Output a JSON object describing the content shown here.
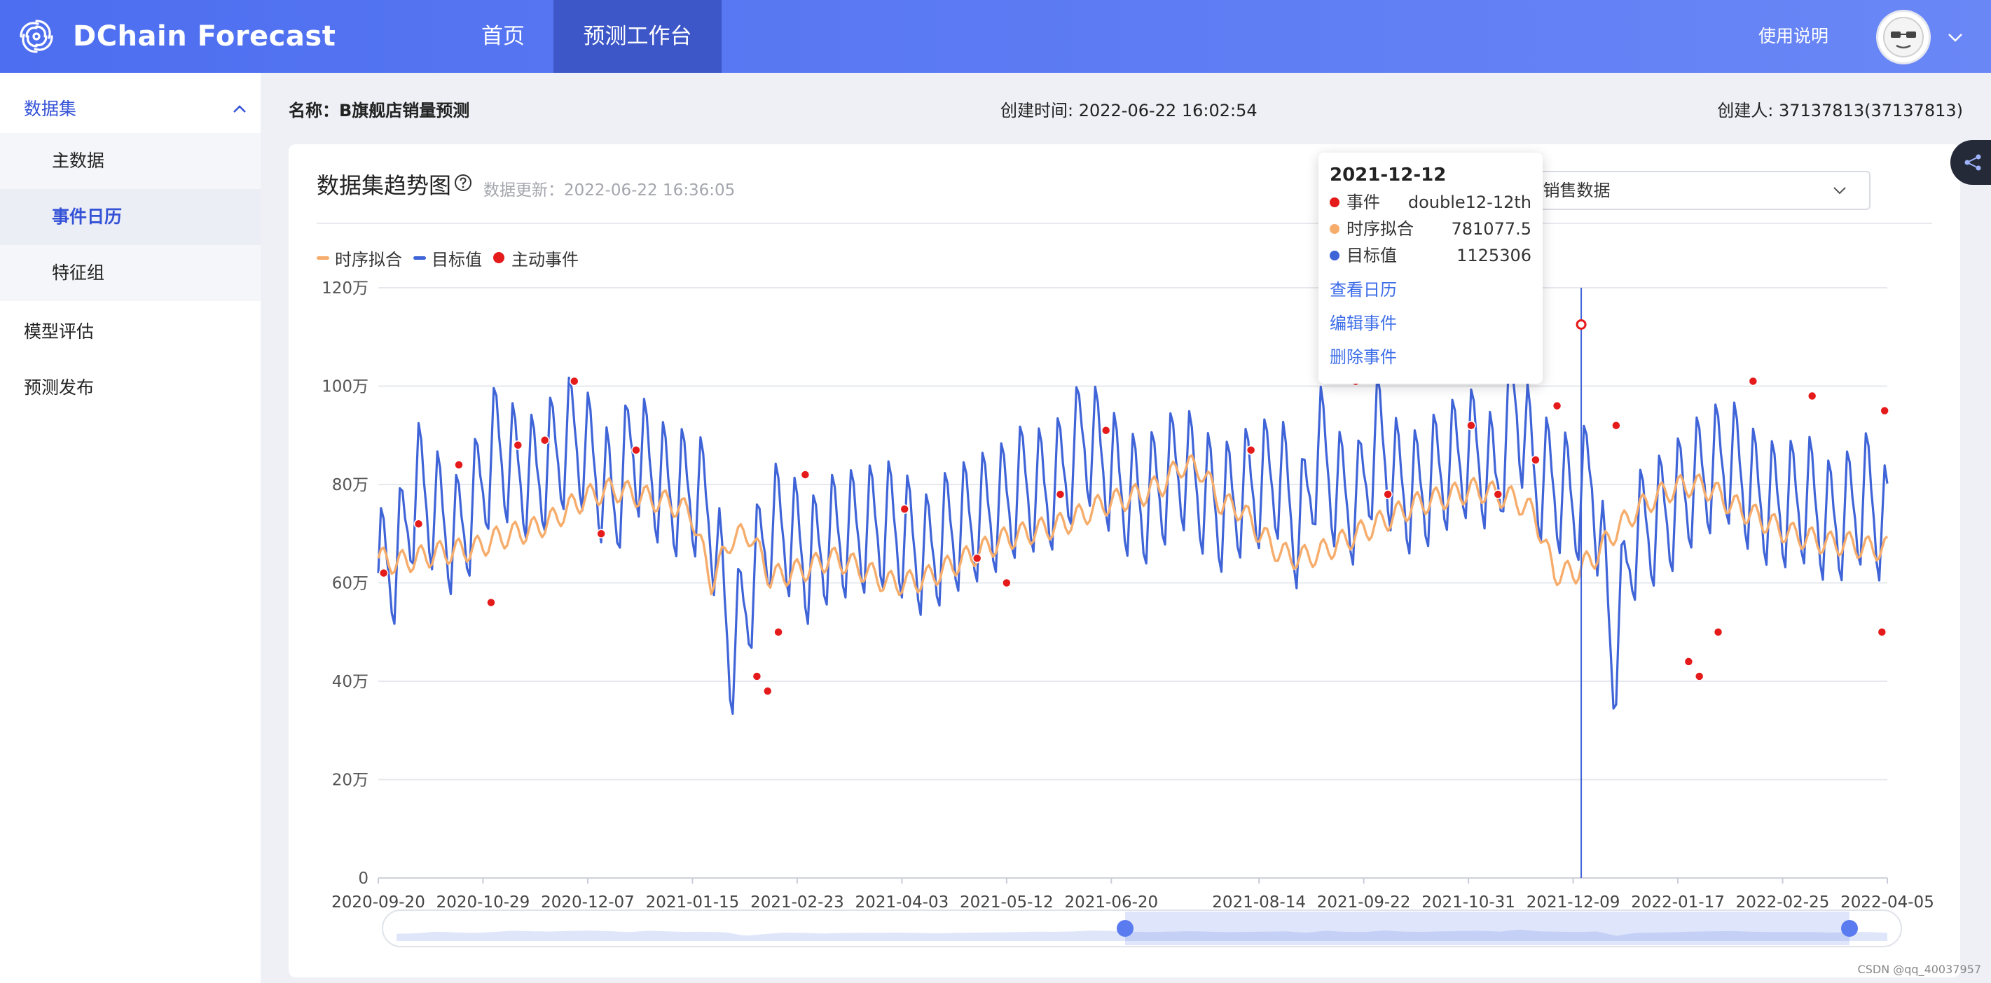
{
  "app": {
    "brand": "DChain Forecast",
    "help": "使用说明"
  },
  "nav": [
    {
      "label": "首页"
    },
    {
      "label": "预测工作台",
      "active": true
    }
  ],
  "sidebar": {
    "group": "数据集",
    "items": [
      {
        "label": "主数据"
      },
      {
        "label": "事件日历",
        "active": true
      },
      {
        "label": "特征组"
      }
    ],
    "top_items": [
      {
        "label": "模型评估"
      },
      {
        "label": "预测发布"
      }
    ]
  },
  "info": {
    "name": "名称：B旗舰店销量预测",
    "created_time": "创建时间: 2022-06-22 16:02:54",
    "creator": "创建人: 37137813(37137813)"
  },
  "card": {
    "title": "数据集趋势图",
    "update": "数据更新：2022-06-22 16:36:05",
    "select_value": "B旗舰店销售数据"
  },
  "legend": [
    {
      "name": "时序拟合",
      "color": "#f6ad6c",
      "kind": "line"
    },
    {
      "name": "目标值",
      "color": "#3f64d8",
      "kind": "line"
    },
    {
      "name": "主动事件",
      "color": "#e51a1a",
      "kind": "dot"
    }
  ],
  "tooltip": {
    "date": "2021-12-12",
    "rows": [
      {
        "name": "事件",
        "value": "double12-12th",
        "color": "#e51a1a"
      },
      {
        "name": "时序拟合",
        "value": "781077.5",
        "color": "#f6ad6c"
      },
      {
        "name": "目标值",
        "value": "1125306",
        "color": "#3f64d8"
      }
    ],
    "actions": [
      "查看日历",
      "编辑事件",
      "删除事件"
    ]
  },
  "watermark": "CSDN @qq_40037957",
  "chart_data": {
    "type": "line",
    "title": "",
    "xlabel": "",
    "ylabel": "",
    "y_ticks": [
      "0",
      "20万",
      "40万",
      "60万",
      "80万",
      "100万",
      "120万"
    ],
    "ylim": [
      0,
      1200000
    ],
    "x_tick_labels": [
      "2020-09-20",
      "2020-10-29",
      "2020-12-07",
      "2021-01-15",
      "2021-02-23",
      "2021-04-03",
      "2021-05-12",
      "2021-06-20",
      "2021-08-14",
      "2021-09-22",
      "2021-10-31",
      "2021-12-09",
      "2022-01-17",
      "2022-02-25",
      "2022-04-05"
    ],
    "x_range": [
      "2020-09-20",
      "2022-04-05"
    ],
    "grid": true,
    "highlight": {
      "date": "2021-12-12",
      "target": 1125306,
      "fit": 781077.5
    },
    "series": [
      {
        "name": "目标值",
        "color": "#3f64d8",
        "weekly_samples": [
          620000,
          650000,
          800000,
          740000,
          690000,
          770000,
          880000,
          830000,
          810000,
          860000,
          900000,
          840000,
          760000,
          880000,
          820000,
          780000,
          790000,
          740000,
          450000,
          590000,
          720000,
          700000,
          640000,
          690000,
          700000,
          710000,
          720000,
          690000,
          650000,
          700000,
          720000,
          740000,
          760000,
          800000,
          780000,
          820000,
          900000,
          850000,
          790000,
          760000,
          800000,
          840000,
          790000,
          750000,
          780000,
          800000,
          820000,
          700000,
          880000,
          780000,
          760000,
          900000,
          800000,
          780000,
          820000,
          850000,
          870000,
          800000,
          980000,
          820000,
          800000,
          760000,
          820000,
          440000,
          690000,
          720000,
          750000,
          800000,
          830000,
          850000,
          790000,
          760000,
          760000,
          770000,
          720000,
          740000,
          780000,
          700000
        ]
      },
      {
        "name": "时序拟合",
        "color": "#f6ad6c",
        "weekly_samples": [
          650000,
          640000,
          650000,
          660000,
          665000,
          670000,
          690000,
          700000,
          710000,
          730000,
          760000,
          780000,
          790000,
          780000,
          770000,
          760000,
          740000,
          600000,
          690000,
          700000,
          610000,
          620000,
          630000,
          650000,
          640000,
          620000,
          600000,
          600000,
          610000,
          630000,
          650000,
          670000,
          690000,
          700000,
          710000,
          720000,
          740000,
          760000,
          770000,
          780000,
          800000,
          840000,
          830000,
          760000,
          750000,
          700000,
          660000,
          650000,
          660000,
          680000,
          700000,
          720000,
          740000,
          760000,
          770000,
          780000,
          790000,
          780000,
          770000,
          740000,
          620000,
          620000,
          650000,
          700000,
          740000,
          770000,
          790000,
          800000,
          790000,
          760000,
          740000,
          720000,
          700000,
          690000,
          680000,
          680000,
          670000,
          670000
        ]
      },
      {
        "name": "主动事件",
        "color": "#e51a1a",
        "events": [
          {
            "x": "2020-09-22",
            "y": 620000
          },
          {
            "x": "2020-10-05",
            "y": 720000
          },
          {
            "x": "2020-10-20",
            "y": 840000
          },
          {
            "x": "2020-11-01",
            "y": 560000
          },
          {
            "x": "2020-11-11",
            "y": 880000
          },
          {
            "x": "2020-11-21",
            "y": 890000
          },
          {
            "x": "2020-12-02",
            "y": 1010000
          },
          {
            "x": "2020-12-12",
            "y": 700000
          },
          {
            "x": "2020-12-25",
            "y": 870000
          },
          {
            "x": "2021-02-08",
            "y": 410000
          },
          {
            "x": "2021-02-12",
            "y": 380000
          },
          {
            "x": "2021-02-16",
            "y": 500000
          },
          {
            "x": "2021-02-26",
            "y": 820000
          },
          {
            "x": "2021-04-04",
            "y": 750000
          },
          {
            "x": "2021-05-01",
            "y": 650000
          },
          {
            "x": "2021-05-12",
            "y": 600000
          },
          {
            "x": "2021-06-01",
            "y": 780000
          },
          {
            "x": "2021-06-18",
            "y": 910000
          },
          {
            "x": "2021-08-11",
            "y": 870000
          },
          {
            "x": "2021-09-19",
            "y": 1010000
          },
          {
            "x": "2021-10-01",
            "y": 780000
          },
          {
            "x": "2021-11-01",
            "y": 920000
          },
          {
            "x": "2021-11-11",
            "y": 780000
          },
          {
            "x": "2021-11-25",
            "y": 850000
          },
          {
            "x": "2021-12-03",
            "y": 960000
          },
          {
            "x": "2021-12-12",
            "y": 1125306
          },
          {
            "x": "2021-12-25",
            "y": 920000
          },
          {
            "x": "2022-01-21",
            "y": 440000
          },
          {
            "x": "2022-01-25",
            "y": 410000
          },
          {
            "x": "2022-02-01",
            "y": 500000
          },
          {
            "x": "2022-02-14",
            "y": 1010000
          },
          {
            "x": "2022-03-08",
            "y": 980000
          },
          {
            "x": "2022-04-03",
            "y": 500000
          },
          {
            "x": "2022-04-04",
            "y": 950000
          }
        ]
      }
    ]
  }
}
